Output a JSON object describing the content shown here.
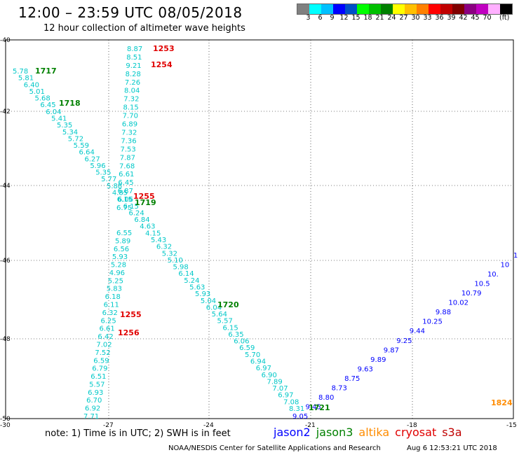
{
  "header": {
    "title": "12:00 – 23:59 UTC 08/05/2018",
    "subtitle": "12 hour collection of altimeter wave heights"
  },
  "scale": {
    "colors": [
      "#808080",
      "#00ffff",
      "#00c0ff",
      "#0000ff",
      "#0050c8",
      "#00ff00",
      "#00c000",
      "#008000",
      "#ffff00",
      "#ffc000",
      "#ff8000",
      "#ff0000",
      "#c00000",
      "#800000",
      "#8b0080",
      "#c000c0",
      "#ffb0ff",
      "#000000"
    ],
    "labels": [
      "3",
      "6",
      "9",
      "12",
      "15",
      "18",
      "21",
      "24",
      "27",
      "30",
      "33",
      "36",
      "39",
      "42",
      "45",
      "70"
    ],
    "unit": "(ft)"
  },
  "axes": {
    "lat_labels": [
      "-40",
      "-42",
      "-44",
      "-46",
      "-48",
      "-50"
    ],
    "lon_labels": [
      "-30",
      "-27",
      "-24",
      "-21",
      "-18",
      "-15"
    ]
  },
  "tracks": [
    {
      "id": "jason3-west",
      "color": "#00c8c8",
      "points": [
        {
          "v": "5.78"
        },
        {
          "v": "5.81"
        },
        {
          "v": "6.40"
        },
        {
          "v": "5.01"
        },
        {
          "v": "5.68"
        },
        {
          "v": "6.45"
        },
        {
          "v": "6.04"
        },
        {
          "v": "5.41"
        },
        {
          "v": "5.35"
        },
        {
          "v": "5.34"
        },
        {
          "v": "5.72"
        },
        {
          "v": "5.59"
        },
        {
          "v": "6.64"
        },
        {
          "v": "6.27"
        },
        {
          "v": "5.96"
        },
        {
          "v": "5.35"
        },
        {
          "v": "5.77"
        },
        {
          "v": "5.88"
        },
        {
          "v": "4.85"
        },
        {
          "v": "6.06"
        },
        {
          "v": "6.15"
        },
        {
          "v": "6.24"
        },
        {
          "v": "6.84"
        },
        {
          "v": "4.63"
        },
        {
          "v": "4.15"
        },
        {
          "v": "5.43"
        },
        {
          "v": "6.32"
        },
        {
          "v": "5.32"
        },
        {
          "v": "5.10"
        },
        {
          "v": "5.98"
        },
        {
          "v": "6.14"
        },
        {
          "v": "5.24"
        },
        {
          "v": "5.63"
        },
        {
          "v": "5.93"
        },
        {
          "v": "5.04"
        },
        {
          "v": "6.04"
        },
        {
          "v": "5.64"
        },
        {
          "v": "5.57"
        },
        {
          "v": "6.15"
        },
        {
          "v": "6.35"
        },
        {
          "v": "6.06"
        },
        {
          "v": "6.59"
        },
        {
          "v": "5.70"
        },
        {
          "v": "6.94"
        },
        {
          "v": "6.97"
        },
        {
          "v": "6.90"
        },
        {
          "v": "7.89"
        },
        {
          "v": "7.07"
        },
        {
          "v": "6.97"
        },
        {
          "v": "7.08"
        },
        {
          "v": "8.31"
        }
      ]
    },
    {
      "id": "cryosat-north",
      "color": "#00c8c8",
      "points": [
        {
          "v": "8.87"
        },
        {
          "v": "8.51"
        },
        {
          "v": "9.21"
        },
        {
          "v": "8.28"
        },
        {
          "v": "7.26"
        },
        {
          "v": "8.04"
        },
        {
          "v": "7.32"
        },
        {
          "v": "8.15"
        },
        {
          "v": "7.70"
        },
        {
          "v": "6.89"
        },
        {
          "v": "7.32"
        },
        {
          "v": "7.36"
        },
        {
          "v": "7.53"
        },
        {
          "v": "7.87"
        },
        {
          "v": "7.68"
        },
        {
          "v": "6.61"
        },
        {
          "v": "6.45"
        },
        {
          "v": "6.87"
        },
        {
          "v": "6.15"
        },
        {
          "v": "6.75"
        }
      ]
    },
    {
      "id": "cryosat-south",
      "color": "#00c8c8",
      "points": [
        {
          "v": "6.55"
        },
        {
          "v": "5.89"
        },
        {
          "v": "6.56"
        },
        {
          "v": "5.93"
        },
        {
          "v": "5.28"
        },
        {
          "v": "4.96"
        },
        {
          "v": "5.25"
        },
        {
          "v": "5.83"
        },
        {
          "v": "6.18"
        },
        {
          "v": "6.11"
        },
        {
          "v": "6.32"
        },
        {
          "v": "6.25"
        },
        {
          "v": "6.61"
        },
        {
          "v": "6.42"
        },
        {
          "v": "7.02"
        },
        {
          "v": "7.52"
        },
        {
          "v": "6.59"
        },
        {
          "v": "6.79"
        },
        {
          "v": "6.51"
        },
        {
          "v": "5.57"
        },
        {
          "v": "6.93"
        },
        {
          "v": "6.70"
        },
        {
          "v": "6.92"
        },
        {
          "v": "7.71"
        }
      ]
    },
    {
      "id": "jason2-east",
      "color": "#0000ff",
      "points": [
        {
          "v": "9.05"
        },
        {
          "v": "9.45"
        },
        {
          "v": "8.80"
        },
        {
          "v": "8.73"
        },
        {
          "v": "8.75"
        },
        {
          "v": "9.63"
        },
        {
          "v": "9.89"
        },
        {
          "v": "9.87"
        },
        {
          "v": "9.25"
        },
        {
          "v": "9.44"
        },
        {
          "v": "10.25"
        },
        {
          "v": "9.88"
        },
        {
          "v": "10.02"
        },
        {
          "v": "10.79"
        },
        {
          "v": "10.5"
        },
        {
          "v": "10."
        },
        {
          "v": "10"
        },
        {
          "v": "1"
        }
      ]
    }
  ],
  "time_labels": [
    {
      "text": "1717",
      "color": "#008000"
    },
    {
      "text": "1718",
      "color": "#008000"
    },
    {
      "text": "1719",
      "color": "#008000"
    },
    {
      "text": "1720",
      "color": "#008000"
    },
    {
      "text": "1721",
      "color": "#008000"
    },
    {
      "text": "1253",
      "color": "#e00000"
    },
    {
      "text": "1254",
      "color": "#e00000"
    },
    {
      "text": "1255",
      "color": "#e00000"
    },
    {
      "text": "1255",
      "color": "#e00000"
    },
    {
      "text": "1256",
      "color": "#e00000"
    },
    {
      "text": "1824",
      "color": "#ff8c00"
    }
  ],
  "footer": {
    "note": "note:  1) Time is in UTC;  2) SWH is in feet",
    "legend": [
      {
        "name": "jason2",
        "color": "#0000ff"
      },
      {
        "name": "jason3",
        "color": "#008000"
      },
      {
        "name": "altika",
        "color": "#ff8c00"
      },
      {
        "name": "cryosat",
        "color": "#e00000"
      },
      {
        "name": "s3a",
        "color": "#c00000"
      }
    ],
    "credit": "NOAA/NESDIS Center for Satellite Applications and Research",
    "timestamp": "Aug  6 12:53:21 UTC 2018"
  }
}
